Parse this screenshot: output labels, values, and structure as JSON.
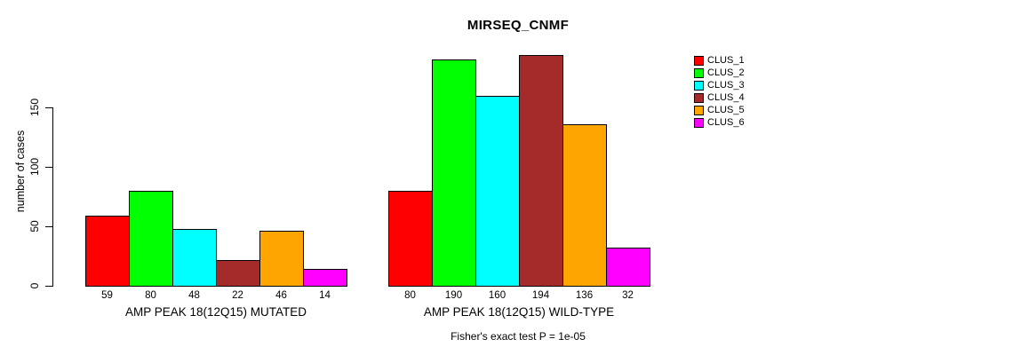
{
  "chart_data": {
    "type": "bar",
    "title": "MIRSEQ_CNMF",
    "ylabel": "number of cases",
    "xlabel": "",
    "subtitle": "Fisher's exact test P = 1e-05",
    "ylim": [
      0,
      150
    ],
    "yticks": [
      0,
      50,
      100,
      150
    ],
    "grid": false,
    "legend_position": "right",
    "bar_outline_color": "#000000",
    "series": [
      {
        "name": "CLUS_1",
        "color": "#FF0000"
      },
      {
        "name": "CLUS_2",
        "color": "#00FF00"
      },
      {
        "name": "CLUS_3",
        "color": "#00FFFF"
      },
      {
        "name": "CLUS_4",
        "color": "#A52A2A"
      },
      {
        "name": "CLUS_5",
        "color": "#FFA500"
      },
      {
        "name": "CLUS_6",
        "color": "#FF00FF"
      }
    ],
    "groups": [
      {
        "label": "AMP PEAK 18(12Q15) MUTATED",
        "values": [
          59,
          80,
          48,
          22,
          46,
          14
        ]
      },
      {
        "label": "AMP PEAK 18(12Q15) WILD-TYPE",
        "values": [
          80,
          190,
          160,
          194,
          136,
          32
        ]
      }
    ]
  }
}
